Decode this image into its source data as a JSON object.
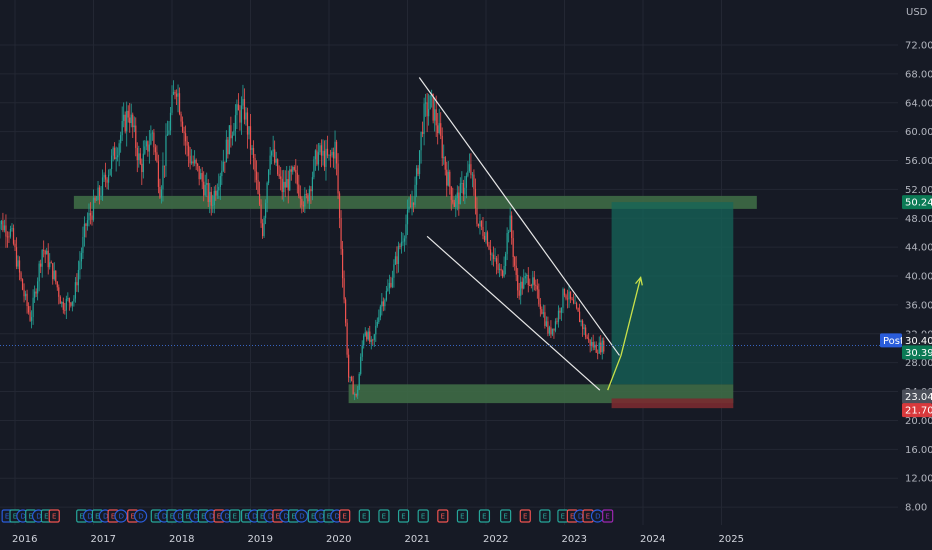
{
  "chart_data": {
    "type": "candlestick",
    "currency": "USD",
    "x_labels": [
      "2016",
      "2017",
      "2018",
      "2019",
      "2020",
      "2021",
      "2022",
      "2023",
      "2024",
      "2025"
    ],
    "y_ticks": [
      8,
      12,
      16,
      20,
      24,
      28,
      32,
      36,
      40,
      44,
      48,
      52,
      56,
      60,
      64,
      68,
      72
    ],
    "grid": true,
    "price_path": [
      [
        2015.75,
        48
      ],
      [
        2015.95,
        46
      ],
      [
        2016.1,
        38
      ],
      [
        2016.2,
        34
      ],
      [
        2016.35,
        44
      ],
      [
        2016.5,
        40
      ],
      [
        2016.6,
        36
      ],
      [
        2016.75,
        37
      ],
      [
        2016.9,
        47
      ],
      [
        2017.1,
        52
      ],
      [
        2017.3,
        58
      ],
      [
        2017.45,
        63
      ],
      [
        2017.6,
        55
      ],
      [
        2017.75,
        60
      ],
      [
        2017.85,
        52
      ],
      [
        2017.95,
        60
      ],
      [
        2018.05,
        67
      ],
      [
        2018.2,
        57
      ],
      [
        2018.35,
        54
      ],
      [
        2018.5,
        50
      ],
      [
        2018.65,
        56
      ],
      [
        2018.8,
        62
      ],
      [
        2018.92,
        63
      ],
      [
        2019.05,
        55
      ],
      [
        2019.15,
        46
      ],
      [
        2019.25,
        58
      ],
      [
        2019.4,
        52
      ],
      [
        2019.55,
        54
      ],
      [
        2019.7,
        50
      ],
      [
        2019.85,
        57
      ],
      [
        2020.0,
        56
      ],
      [
        2020.08,
        58
      ],
      [
        2020.15,
        45
      ],
      [
        2020.25,
        26
      ],
      [
        2020.35,
        23
      ],
      [
        2020.45,
        33
      ],
      [
        2020.55,
        30
      ],
      [
        2020.65,
        36
      ],
      [
        2020.75,
        38
      ],
      [
        2020.9,
        44
      ],
      [
        2021.0,
        48
      ],
      [
        2021.1,
        52
      ],
      [
        2021.2,
        62
      ],
      [
        2021.3,
        64
      ],
      [
        2021.4,
        60
      ],
      [
        2021.5,
        54
      ],
      [
        2021.6,
        50
      ],
      [
        2021.7,
        52
      ],
      [
        2021.8,
        55
      ],
      [
        2021.9,
        47
      ],
      [
        2022.0,
        46
      ],
      [
        2022.1,
        42
      ],
      [
        2022.2,
        40
      ],
      [
        2022.3,
        48
      ],
      [
        2022.4,
        38
      ],
      [
        2022.55,
        40
      ],
      [
        2022.7,
        36
      ],
      [
        2022.8,
        32
      ],
      [
        2022.9,
        34
      ],
      [
        2023.0,
        38
      ],
      [
        2023.1,
        36
      ],
      [
        2023.2,
        34
      ],
      [
        2023.3,
        31
      ],
      [
        2023.4,
        30
      ],
      [
        2023.5,
        30.4
      ]
    ],
    "zones": [
      {
        "name": "resistance",
        "x_from": 2016.75,
        "x_to": 2025.45,
        "y_from": 49.3,
        "y_to": 51.1,
        "color": "#3e6b46"
      },
      {
        "name": "support",
        "x_from": 2020.25,
        "x_to": 2025.15,
        "y_from": 22.4,
        "y_to": 25.0,
        "color": "#3e6b46"
      },
      {
        "name": "target",
        "x_from": 2023.6,
        "x_to": 2025.15,
        "y_from": 25.0,
        "y_to": 50.24,
        "color": "#156559"
      },
      {
        "name": "stop",
        "x_from": 2023.6,
        "x_to": 2025.15,
        "y_from": 21.7,
        "y_to": 23.04,
        "color": "#7a2a30"
      }
    ],
    "trendlines": [
      {
        "name": "channel-upper",
        "from": [
          2021.15,
          67.5
        ],
        "to": [
          2023.7,
          29.0
        ],
        "color": "#e6e6e6"
      },
      {
        "name": "channel-lower",
        "from": [
          2021.25,
          45.5
        ],
        "to": [
          2023.45,
          24.2
        ],
        "color": "#e6e6e6"
      }
    ],
    "projection": {
      "points": [
        [
          2023.55,
          24.2
        ],
        [
          2023.72,
          29.0
        ],
        [
          2023.97,
          39.8
        ]
      ],
      "color": "#c8e04a"
    },
    "price_line": 30.39,
    "tags": [
      {
        "label": "50.24",
        "y": 50.24,
        "color": "#0b7a55"
      },
      {
        "label": "Post",
        "y": 30.4,
        "color": "#2a5ddb"
      },
      {
        "label": "30.40",
        "y": 30.4,
        "color": "#1e222d"
      },
      {
        "label": "30.39",
        "y": 30.39,
        "color": "#0b7a55"
      },
      {
        "label": "23.04",
        "y": 23.04,
        "color": "#4b4f5a"
      },
      {
        "label": "21.70",
        "y": 21.7,
        "color": "#d8393c"
      }
    ],
    "events": [
      {
        "t": "E",
        "x": 2015.9,
        "c": "#2a5ddb"
      },
      {
        "t": "E",
        "x": 2016.0,
        "c": "#26a69a"
      },
      {
        "t": "D",
        "x": 2016.1,
        "c": "#2a5ddb"
      },
      {
        "t": "E",
        "x": 2016.2,
        "c": "#26a69a"
      },
      {
        "t": "D",
        "x": 2016.3,
        "c": "#2a5ddb"
      },
      {
        "t": "E",
        "x": 2016.4,
        "c": "#26a69a"
      },
      {
        "t": "E",
        "x": 2016.5,
        "c": "#ef5350"
      },
      {
        "t": "E",
        "x": 2016.85,
        "c": "#26a69a"
      },
      {
        "t": "D",
        "x": 2016.95,
        "c": "#2a5ddb"
      },
      {
        "t": "E",
        "x": 2017.05,
        "c": "#26a69a"
      },
      {
        "t": "D",
        "x": 2017.15,
        "c": "#2a5ddb"
      },
      {
        "t": "E",
        "x": 2017.25,
        "c": "#ef5350"
      },
      {
        "t": "D",
        "x": 2017.35,
        "c": "#2a5ddb"
      },
      {
        "t": "E",
        "x": 2017.5,
        "c": "#ef5350"
      },
      {
        "t": "D",
        "x": 2017.6,
        "c": "#2a5ddb"
      },
      {
        "t": "E",
        "x": 2017.8,
        "c": "#26a69a"
      },
      {
        "t": "D",
        "x": 2017.9,
        "c": "#2a5ddb"
      },
      {
        "t": "E",
        "x": 2018.0,
        "c": "#26a69a"
      },
      {
        "t": "D",
        "x": 2018.1,
        "c": "#2a5ddb"
      },
      {
        "t": "E",
        "x": 2018.2,
        "c": "#26a69a"
      },
      {
        "t": "D",
        "x": 2018.3,
        "c": "#2a5ddb"
      },
      {
        "t": "E",
        "x": 2018.4,
        "c": "#26a69a"
      },
      {
        "t": "D",
        "x": 2018.5,
        "c": "#2a5ddb"
      },
      {
        "t": "E",
        "x": 2018.6,
        "c": "#ef5350"
      },
      {
        "t": "D",
        "x": 2018.7,
        "c": "#2a5ddb"
      },
      {
        "t": "E",
        "x": 2018.8,
        "c": "#26a69a"
      },
      {
        "t": "E",
        "x": 2018.95,
        "c": "#26a69a"
      },
      {
        "t": "D",
        "x": 2019.05,
        "c": "#2a5ddb"
      },
      {
        "t": "E",
        "x": 2019.15,
        "c": "#26a69a"
      },
      {
        "t": "D",
        "x": 2019.25,
        "c": "#2a5ddb"
      },
      {
        "t": "E",
        "x": 2019.35,
        "c": "#ef5350"
      },
      {
        "t": "D",
        "x": 2019.45,
        "c": "#2a5ddb"
      },
      {
        "t": "E",
        "x": 2019.55,
        "c": "#26a69a"
      },
      {
        "t": "D",
        "x": 2019.65,
        "c": "#2a5ddb"
      },
      {
        "t": "E",
        "x": 2019.8,
        "c": "#26a69a"
      },
      {
        "t": "D",
        "x": 2019.9,
        "c": "#2a5ddb"
      },
      {
        "t": "E",
        "x": 2020.0,
        "c": "#26a69a"
      },
      {
        "t": "D",
        "x": 2020.1,
        "c": "#2a5ddb"
      },
      {
        "t": "E",
        "x": 2020.2,
        "c": "#ef5350"
      },
      {
        "t": "E",
        "x": 2020.45,
        "c": "#26a69a"
      },
      {
        "t": "E",
        "x": 2020.7,
        "c": "#26a69a"
      },
      {
        "t": "E",
        "x": 2020.95,
        "c": "#26a69a"
      },
      {
        "t": "E",
        "x": 2021.2,
        "c": "#26a69a"
      },
      {
        "t": "E",
        "x": 2021.45,
        "c": "#ef5350"
      },
      {
        "t": "E",
        "x": 2021.7,
        "c": "#26a69a"
      },
      {
        "t": "E",
        "x": 2021.98,
        "c": "#26a69a"
      },
      {
        "t": "E",
        "x": 2022.25,
        "c": "#26a69a"
      },
      {
        "t": "E",
        "x": 2022.5,
        "c": "#ef5350"
      },
      {
        "t": "E",
        "x": 2022.75,
        "c": "#26a69a"
      },
      {
        "t": "E",
        "x": 2022.98,
        "c": "#26a69a"
      },
      {
        "t": "E",
        "x": 2023.1,
        "c": "#ef5350"
      },
      {
        "t": "D",
        "x": 2023.2,
        "c": "#2a5ddb"
      },
      {
        "t": "E",
        "x": 2023.3,
        "c": "#ef5350"
      },
      {
        "t": "D",
        "x": 2023.42,
        "c": "#2a5ddb"
      },
      {
        "t": "E",
        "x": 2023.55,
        "c": "#9c27b0"
      }
    ]
  }
}
